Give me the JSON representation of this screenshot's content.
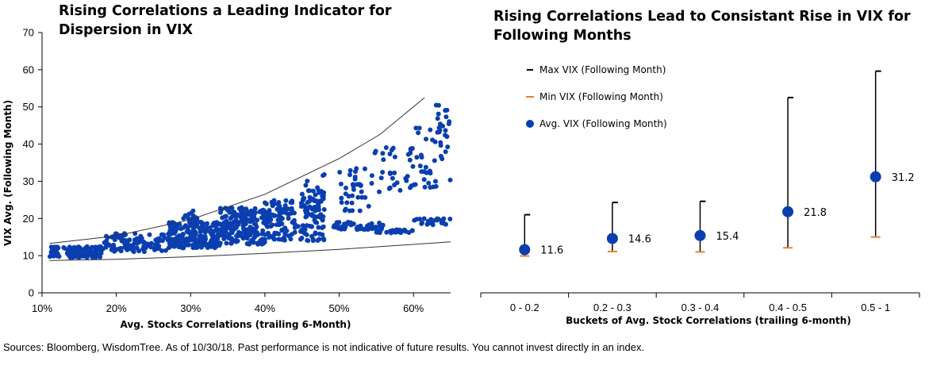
{
  "footnote": "Sources: Bloomberg, WisdomTree. As of 10/30/18. Past performance is not indicative of future results. You cannot invest directly in an index.",
  "chart_data": [
    {
      "type": "scatter",
      "title": "Rising Correlations a Leading Indicator for\nDispersion in VIX",
      "xlabel": "Avg. Stocks Correlations (trailing 6-Month)",
      "ylabel": "VIX Avg. (Following Month)",
      "xlim": [
        0.1,
        0.65
      ],
      "ylim": [
        0,
        70
      ],
      "xticks": [
        "10%",
        "20%",
        "30%",
        "40%",
        "50%",
        "60%"
      ],
      "yticks": [
        "0",
        "10",
        "20",
        "30",
        "40",
        "50",
        "60",
        "70"
      ],
      "grid": false,
      "color": "#0b3fb0",
      "clusters": [
        {
          "x": [
            0.11,
            0.18
          ],
          "y": [
            9.5,
            12.5
          ],
          "n": 120
        },
        {
          "x": [
            0.18,
            0.27
          ],
          "y": [
            11,
            16
          ],
          "n": 110
        },
        {
          "x": [
            0.27,
            0.34
          ],
          "y": [
            12,
            19
          ],
          "n": 190
        },
        {
          "x": [
            0.29,
            0.31
          ],
          "y": [
            18,
            22.5
          ],
          "n": 18
        },
        {
          "x": [
            0.34,
            0.4
          ],
          "y": [
            13,
            23
          ],
          "n": 190
        },
        {
          "x": [
            0.4,
            0.48
          ],
          "y": [
            14,
            25
          ],
          "n": 170
        },
        {
          "x": [
            0.45,
            0.48
          ],
          "y": [
            22,
            32
          ],
          "n": 35
        },
        {
          "x": [
            0.49,
            0.56
          ],
          "y": [
            17,
            19
          ],
          "n": 50
        },
        {
          "x": [
            0.5,
            0.54
          ],
          "y": [
            22,
            34
          ],
          "n": 35
        },
        {
          "x": [
            0.54,
            0.6
          ],
          "y": [
            26,
            40
          ],
          "n": 35
        },
        {
          "x": [
            0.55,
            0.6
          ],
          "y": [
            16,
            17
          ],
          "n": 22
        },
        {
          "x": [
            0.6,
            0.65
          ],
          "y": [
            18,
            20
          ],
          "n": 25
        },
        {
          "x": [
            0.6,
            0.65
          ],
          "y": [
            28,
            45
          ],
          "n": 40
        },
        {
          "x": [
            0.63,
            0.65
          ],
          "y": [
            43,
            51
          ],
          "n": 12
        }
      ],
      "upper_bound": {
        "x": [
          0.11,
          0.2,
          0.3,
          0.4,
          0.5,
          0.555,
          0.615
        ],
        "y": [
          13.3,
          15.3,
          19.7,
          26.5,
          36.1,
          42.6,
          52.5
        ]
      },
      "lower_bound": {
        "x": [
          0.11,
          0.2,
          0.3,
          0.4,
          0.5,
          0.65
        ],
        "y": [
          8.7,
          9.0,
          9.7,
          10.6,
          11.7,
          13.7
        ]
      }
    },
    {
      "type": "range",
      "title": "Rising Correlations Lead to Consistant Rise in VIX  for\nFollowing Months",
      "xlabel": "Buckets of Avg. Stock Correlations (trailing 6-month)",
      "categories": [
        "0 - 0.2",
        "0.2 - 0.3",
        "0.3 - 0.4",
        "0.4 - 0.5",
        "0.5 - 1"
      ],
      "series": [
        {
          "name": "Max VIX (Following Month)",
          "values": [
            21.0,
            24.3,
            24.6,
            52.5,
            59.6
          ],
          "color": "#000000"
        },
        {
          "name": "Min VIX (Following Month)",
          "values": [
            9.9,
            11.1,
            11.0,
            12.1,
            15.0
          ],
          "color": "#ed7d31"
        },
        {
          "name": "Avg. VIX (Following Month)",
          "values": [
            11.6,
            14.6,
            15.4,
            21.8,
            31.2
          ],
          "color": "#0b3fb0"
        }
      ],
      "data_labels": [
        "11.6",
        "14.6",
        "15.4",
        "21.8",
        "31.2"
      ],
      "legend": "top-left"
    }
  ]
}
